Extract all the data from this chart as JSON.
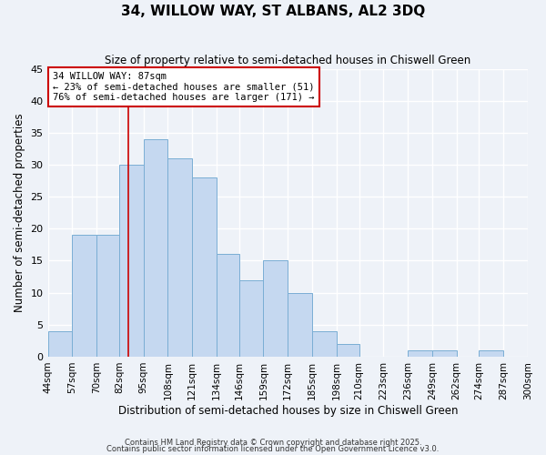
{
  "title": "34, WILLOW WAY, ST ALBANS, AL2 3DQ",
  "subtitle": "Size of property relative to semi-detached houses in Chiswell Green",
  "xlabel": "Distribution of semi-detached houses by size in Chiswell Green",
  "ylabel": "Number of semi-detached properties",
  "bin_edges": [
    44,
    57,
    70,
    82,
    95,
    108,
    121,
    134,
    146,
    159,
    172,
    185,
    198,
    210,
    223,
    236,
    249,
    262,
    274,
    287,
    300
  ],
  "bar_heights": [
    4,
    19,
    19,
    30,
    34,
    31,
    28,
    16,
    12,
    15,
    10,
    4,
    2,
    0,
    0,
    1,
    1,
    0,
    1,
    0
  ],
  "bar_color": "#c5d8f0",
  "bar_edge_color": "#7aaed4",
  "property_size": 87,
  "vline_color": "#cc0000",
  "annotation_title": "34 WILLOW WAY: 87sqm",
  "annotation_line1": "← 23% of semi-detached houses are smaller (51)",
  "annotation_line2": "76% of semi-detached houses are larger (171) →",
  "annotation_box_color": "#ffffff",
  "annotation_box_edge": "#cc0000",
  "ylim": [
    0,
    45
  ],
  "yticks": [
    0,
    5,
    10,
    15,
    20,
    25,
    30,
    35,
    40,
    45
  ],
  "background_color": "#eef2f8",
  "footer1": "Contains HM Land Registry data © Crown copyright and database right 2025.",
  "footer2": "Contains public sector information licensed under the Open Government Licence v3.0."
}
